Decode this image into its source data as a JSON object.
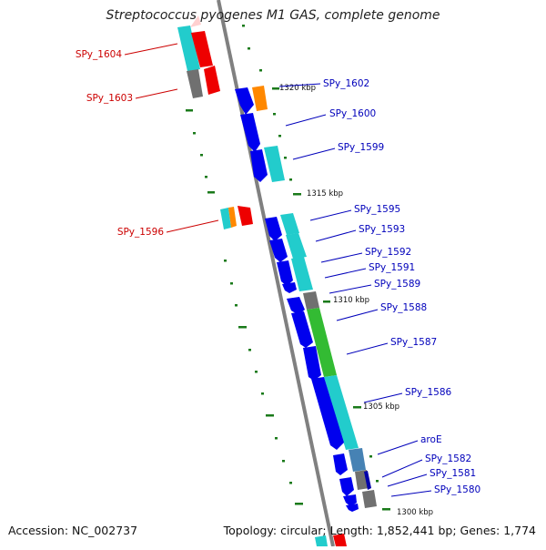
{
  "title": "Streptococcus pyogenes M1 GAS, complete genome",
  "footer": {
    "accession": "Accession: NC_002737",
    "summary": "Topology: circular; Length: 1,852,441 bp; Genes: 1,774"
  },
  "colors": {
    "backbone": "#808080",
    "tick": "#1a7a1a",
    "label_forward": "#cc0000",
    "label_reverse": "#0000bb",
    "gene_blue": "#0000ee",
    "gene_cyan": "#22cccc",
    "gene_red": "#ee0000",
    "gene_orange": "#ff8800",
    "gene_gray": "#707070",
    "gene_green": "#33bb33",
    "gene_steel": "#4682b4"
  },
  "scale_labels": [
    "1320 kbp",
    "1315 kbp",
    "1310 kbp",
    "1305 kbp",
    "1300 kbp"
  ],
  "forward_gene_labels": [
    "SPy_1604",
    "SPy_1603",
    "SPy_1596"
  ],
  "reverse_gene_labels": [
    "SPy_1602",
    "SPy_1600",
    "SPy_1599",
    "SPy_1595",
    "SPy_1593",
    "SPy_1592",
    "SPy_1591",
    "SPy_1589",
    "SPy_1588",
    "SPy_1587",
    "SPy_1586",
    "aroE",
    "SPy_1582",
    "SPy_1581",
    "SPy_1580"
  ]
}
